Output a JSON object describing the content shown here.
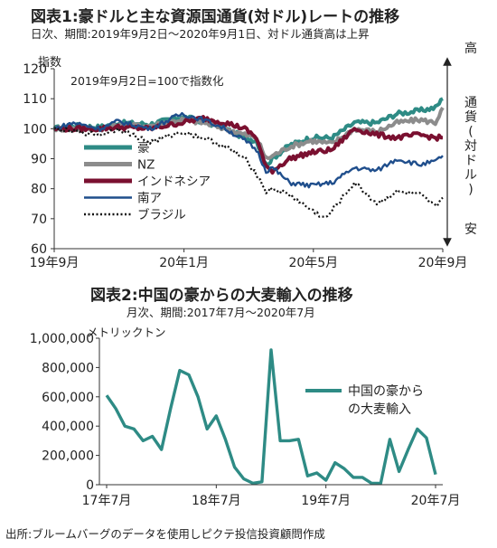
{
  "source_note": "出所:ブルームバーグのデータを使用しピクテ投信投資顧問作成",
  "chart_data": [
    {
      "type": "line",
      "title": "図表1:豪ドルと主な資源国通貨(対ドル)レートの推移",
      "subtitle": "日次、期間:2019年9月2日～2020年9月1日、対ドル通貨高は上昇",
      "ylabel": "指数",
      "annotation": "2019年9月2日=100で指数化",
      "right_axis": {
        "top": "高",
        "middle": "通貨(対ドル)",
        "bottom": "安"
      },
      "ylim": [
        60,
        120
      ],
      "yticks": [
        "60",
        "70",
        "80",
        "90",
        "100",
        "110",
        "120"
      ],
      "xticks": [
        "19年9月",
        "20年1月",
        "20年5月",
        "20年9月"
      ],
      "x_range": [
        "2019-09-02",
        "2020-09-01"
      ],
      "grid": false,
      "legend_position": "left-middle",
      "series": [
        {
          "name": "豪",
          "color": "#2e8b85",
          "style": "solid",
          "points": [
            [
              "2019-09-02",
              100
            ],
            [
              "2019-09-20",
              101
            ],
            [
              "2019-10-15",
              100.5
            ],
            [
              "2019-11-01",
              102
            ],
            [
              "2019-12-01",
              101.5
            ],
            [
              "2019-12-31",
              104
            ],
            [
              "2020-01-20",
              102.5
            ],
            [
              "2020-02-10",
              100
            ],
            [
              "2020-02-28",
              97
            ],
            [
              "2020-03-10",
              96
            ],
            [
              "2020-03-19",
              88
            ],
            [
              "2020-03-25",
              90
            ],
            [
              "2020-04-10",
              94.5
            ],
            [
              "2020-04-30",
              97
            ],
            [
              "2020-05-20",
              97
            ],
            [
              "2020-06-10",
              102
            ],
            [
              "2020-07-01",
              102
            ],
            [
              "2020-07-20",
              105
            ],
            [
              "2020-08-10",
              106
            ],
            [
              "2020-08-25",
              107
            ],
            [
              "2020-09-01",
              110
            ]
          ]
        },
        {
          "name": "NZ",
          "color": "#8c8c8c",
          "style": "solid",
          "points": [
            [
              "2019-09-02",
              100
            ],
            [
              "2019-09-20",
              100
            ],
            [
              "2019-10-15",
              100
            ],
            [
              "2019-11-01",
              101
            ],
            [
              "2019-12-01",
              101
            ],
            [
              "2019-12-31",
              103
            ],
            [
              "2020-01-20",
              102
            ],
            [
              "2020-02-10",
              100
            ],
            [
              "2020-02-28",
              98
            ],
            [
              "2020-03-10",
              97
            ],
            [
              "2020-03-19",
              90
            ],
            [
              "2020-03-25",
              91
            ],
            [
              "2020-04-10",
              94
            ],
            [
              "2020-04-30",
              96
            ],
            [
              "2020-05-20",
              95
            ],
            [
              "2020-06-10",
              100
            ],
            [
              "2020-07-01",
              99
            ],
            [
              "2020-07-20",
              102
            ],
            [
              "2020-08-10",
              103
            ],
            [
              "2020-08-25",
              102
            ],
            [
              "2020-09-01",
              107
            ]
          ]
        },
        {
          "name": "インドネシア",
          "color": "#7a1030",
          "style": "solid",
          "points": [
            [
              "2019-09-02",
              100
            ],
            [
              "2019-09-20",
              100
            ],
            [
              "2019-10-15",
              100
            ],
            [
              "2019-11-01",
              100.5
            ],
            [
              "2019-12-01",
              100
            ],
            [
              "2019-12-31",
              102
            ],
            [
              "2020-01-20",
              103.5
            ],
            [
              "2020-02-10",
              102
            ],
            [
              "2020-02-28",
              100
            ],
            [
              "2020-03-10",
              97
            ],
            [
              "2020-03-19",
              87
            ],
            [
              "2020-03-25",
              86
            ],
            [
              "2020-04-10",
              90
            ],
            [
              "2020-04-30",
              92
            ],
            [
              "2020-05-20",
              93
            ],
            [
              "2020-06-10",
              100
            ],
            [
              "2020-07-01",
              98
            ],
            [
              "2020-07-20",
              97
            ],
            [
              "2020-08-10",
              98
            ],
            [
              "2020-08-25",
              97
            ],
            [
              "2020-09-01",
              97
            ]
          ]
        },
        {
          "name": "南ア",
          "color": "#1f4e8c",
          "style": "solid",
          "points": [
            [
              "2019-09-02",
              100
            ],
            [
              "2019-09-20",
              102
            ],
            [
              "2019-10-15",
              100
            ],
            [
              "2019-11-01",
              102.5
            ],
            [
              "2019-12-01",
              100
            ],
            [
              "2019-12-31",
              105
            ],
            [
              "2020-01-20",
              103
            ],
            [
              "2020-02-10",
              100
            ],
            [
              "2020-02-28",
              96
            ],
            [
              "2020-03-10",
              93
            ],
            [
              "2020-03-19",
              86
            ],
            [
              "2020-03-25",
              87
            ],
            [
              "2020-04-10",
              82
            ],
            [
              "2020-04-30",
              81
            ],
            [
              "2020-05-20",
              82
            ],
            [
              "2020-06-10",
              87
            ],
            [
              "2020-07-01",
              86
            ],
            [
              "2020-07-20",
              90
            ],
            [
              "2020-08-10",
              88
            ],
            [
              "2020-08-25",
              89
            ],
            [
              "2020-09-01",
              91
            ]
          ]
        },
        {
          "name": "ブラジル",
          "color": "#111111",
          "style": "dotted",
          "points": [
            [
              "2019-09-02",
              100
            ],
            [
              "2019-09-20",
              99
            ],
            [
              "2019-10-15",
              98
            ],
            [
              "2019-11-01",
              100
            ],
            [
              "2019-12-01",
              95.5
            ],
            [
              "2019-12-31",
              99
            ],
            [
              "2020-01-20",
              97
            ],
            [
              "2020-02-10",
              94
            ],
            [
              "2020-02-28",
              90
            ],
            [
              "2020-03-10",
              85
            ],
            [
              "2020-03-19",
              79
            ],
            [
              "2020-03-25",
              80
            ],
            [
              "2020-04-10",
              78
            ],
            [
              "2020-04-30",
              73
            ],
            [
              "2020-05-14",
              70
            ],
            [
              "2020-06-10",
              82
            ],
            [
              "2020-07-01",
              75
            ],
            [
              "2020-07-20",
              79
            ],
            [
              "2020-08-10",
              78
            ],
            [
              "2020-08-25",
              74
            ],
            [
              "2020-09-01",
              77
            ]
          ]
        }
      ]
    },
    {
      "type": "line",
      "title": "図表2:中国の豪からの大麦輸入の推移",
      "subtitle": "月次、期間:2017年7月～2020年7月",
      "ylabel": "メトリックトン",
      "ylim": [
        0,
        1000000
      ],
      "yticks": [
        "0",
        "200,000",
        "400,000",
        "600,000",
        "800,000",
        "1,000,000"
      ],
      "xticks": [
        "17年7月",
        "18年7月",
        "19年7月",
        "20年7月"
      ],
      "grid": false,
      "legend_position": "right-middle",
      "series": [
        {
          "name": "中国の豪からの大麦輸入",
          "color": "#2e8b85",
          "x": [
            "2017-07",
            "2017-08",
            "2017-09",
            "2017-10",
            "2017-11",
            "2017-12",
            "2018-01",
            "2018-02",
            "2018-03",
            "2018-04",
            "2018-05",
            "2018-06",
            "2018-07",
            "2018-08",
            "2018-09",
            "2018-10",
            "2018-11",
            "2018-12",
            "2019-01",
            "2019-02",
            "2019-03",
            "2019-04",
            "2019-05",
            "2019-06",
            "2019-07",
            "2019-08",
            "2019-09",
            "2019-10",
            "2019-11",
            "2019-12",
            "2020-01",
            "2020-02",
            "2020-03",
            "2020-04",
            "2020-05",
            "2020-06",
            "2020-07"
          ],
          "values": [
            610000,
            520000,
            400000,
            380000,
            300000,
            330000,
            240000,
            520000,
            780000,
            750000,
            600000,
            380000,
            470000,
            310000,
            120000,
            40000,
            10000,
            20000,
            920000,
            300000,
            300000,
            310000,
            60000,
            80000,
            30000,
            150000,
            110000,
            50000,
            50000,
            10000,
            10000,
            310000,
            90000,
            240000,
            380000,
            320000,
            70000
          ]
        }
      ]
    }
  ]
}
